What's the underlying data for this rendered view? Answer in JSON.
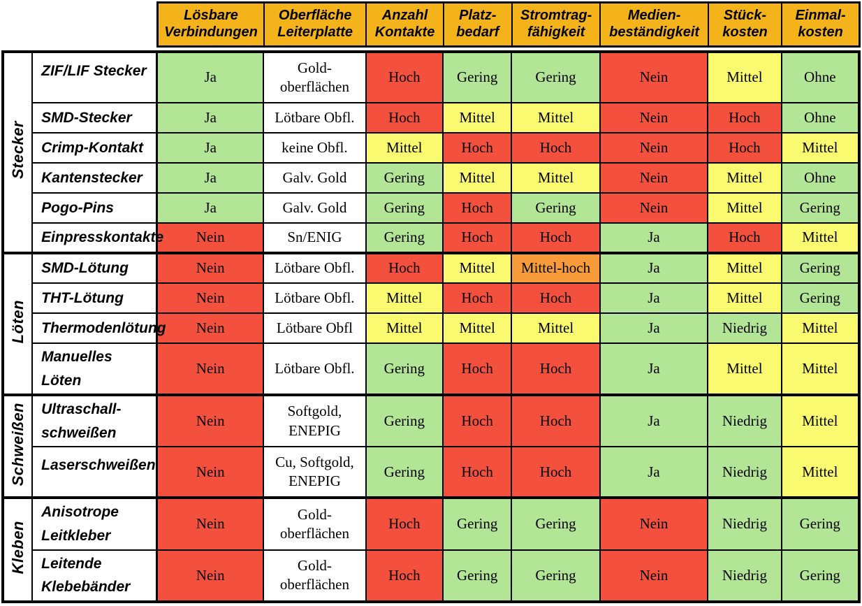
{
  "colors": {
    "green": "#B2E596",
    "yellow": "#FAFA70",
    "red": "#F3513D",
    "orange": "#F79B3B",
    "white": "#FFFFFF",
    "header_bg": "#F4B31A",
    "border": "#000000",
    "text": "#000000"
  },
  "chart_data": {
    "type": "table",
    "title": "Verbindungstechniken Vergleichsmatrix",
    "legend_position": "none",
    "grid": true,
    "columns": [
      "Lösbare\nVerbindungen",
      "Oberfläche\nLeiterplatte",
      "Anzahl\nKontakte",
      "Platz-\nbedarf",
      "Stromtrag-\nfähigkeit",
      "Medien-\nbeständigkeit",
      "Stück-\nkosten",
      "Einmal-\nkosten"
    ],
    "row_groups": [
      {
        "name": "Stecker",
        "rows": [
          {
            "label": "ZIF/LIF Stecker",
            "cells": [
              {
                "value": "Ja",
                "level": "green"
              },
              {
                "value": "Gold-\noberflächen",
                "level": "white"
              },
              {
                "value": "Hoch",
                "level": "red"
              },
              {
                "value": "Gering",
                "level": "green"
              },
              {
                "value": "Gering",
                "level": "green"
              },
              {
                "value": "Nein",
                "level": "red"
              },
              {
                "value": "Mittel",
                "level": "yellow"
              },
              {
                "value": "Ohne",
                "level": "green"
              }
            ]
          },
          {
            "label": "SMD-Stecker",
            "cells": [
              {
                "value": "Ja",
                "level": "green"
              },
              {
                "value": "Lötbare Obfl.",
                "level": "white"
              },
              {
                "value": "Hoch",
                "level": "red"
              },
              {
                "value": "Mittel",
                "level": "yellow"
              },
              {
                "value": "Mittel",
                "level": "yellow"
              },
              {
                "value": "Nein",
                "level": "red"
              },
              {
                "value": "Hoch",
                "level": "red"
              },
              {
                "value": "Ohne",
                "level": "green"
              }
            ]
          },
          {
            "label": "Crimp-Kontakt",
            "cells": [
              {
                "value": "Ja",
                "level": "green"
              },
              {
                "value": "keine Obfl.",
                "level": "white"
              },
              {
                "value": "Mittel",
                "level": "yellow"
              },
              {
                "value": "Hoch",
                "level": "red"
              },
              {
                "value": "Hoch",
                "level": "red"
              },
              {
                "value": "Nein",
                "level": "red"
              },
              {
                "value": "Hoch",
                "level": "red"
              },
              {
                "value": "Mittel",
                "level": "yellow"
              }
            ]
          },
          {
            "label": "Kantenstecker",
            "cells": [
              {
                "value": "Ja",
                "level": "green"
              },
              {
                "value": "Galv. Gold",
                "level": "white"
              },
              {
                "value": "Gering",
                "level": "green"
              },
              {
                "value": "Mittel",
                "level": "yellow"
              },
              {
                "value": "Mittel",
                "level": "yellow"
              },
              {
                "value": "Nein",
                "level": "red"
              },
              {
                "value": "Mittel",
                "level": "yellow"
              },
              {
                "value": "Ohne",
                "level": "green"
              }
            ]
          },
          {
            "label": "Pogo-Pins",
            "cells": [
              {
                "value": "Ja",
                "level": "green"
              },
              {
                "value": "Galv. Gold",
                "level": "white"
              },
              {
                "value": "Gering",
                "level": "green"
              },
              {
                "value": "Hoch",
                "level": "red"
              },
              {
                "value": "Gering",
                "level": "green"
              },
              {
                "value": "Nein",
                "level": "red"
              },
              {
                "value": "Mittel",
                "level": "yellow"
              },
              {
                "value": "Gering",
                "level": "green"
              }
            ]
          },
          {
            "label": "Einpresskontakte",
            "cells": [
              {
                "value": "Nein",
                "level": "red"
              },
              {
                "value": "Sn/ENIG",
                "level": "white"
              },
              {
                "value": "Gering",
                "level": "green"
              },
              {
                "value": "Hoch",
                "level": "red"
              },
              {
                "value": "Hoch",
                "level": "red"
              },
              {
                "value": "Ja",
                "level": "green"
              },
              {
                "value": "Hoch",
                "level": "red"
              },
              {
                "value": "Mittel",
                "level": "yellow"
              }
            ]
          }
        ]
      },
      {
        "name": "Löten",
        "rows": [
          {
            "label": "SMD-Lötung",
            "cells": [
              {
                "value": "Nein",
                "level": "red"
              },
              {
                "value": "Lötbare Obfl.",
                "level": "white"
              },
              {
                "value": "Hoch",
                "level": "red"
              },
              {
                "value": "Mittel",
                "level": "yellow"
              },
              {
                "value": "Mittel-hoch",
                "level": "orange"
              },
              {
                "value": "Ja",
                "level": "green"
              },
              {
                "value": "Mittel",
                "level": "yellow"
              },
              {
                "value": "Gering",
                "level": "green"
              }
            ]
          },
          {
            "label": "THT-Lötung",
            "cells": [
              {
                "value": "Nein",
                "level": "red"
              },
              {
                "value": "Lötbare Obfl.",
                "level": "white"
              },
              {
                "value": "Mittel",
                "level": "yellow"
              },
              {
                "value": "Hoch",
                "level": "red"
              },
              {
                "value": "Hoch",
                "level": "red"
              },
              {
                "value": "Ja",
                "level": "green"
              },
              {
                "value": "Mittel",
                "level": "yellow"
              },
              {
                "value": "Gering",
                "level": "green"
              }
            ]
          },
          {
            "label": "Thermodenlötung",
            "cells": [
              {
                "value": "Nein",
                "level": "red"
              },
              {
                "value": "Lötbare Obfl",
                "level": "white"
              },
              {
                "value": "Mittel",
                "level": "yellow"
              },
              {
                "value": "Mittel",
                "level": "yellow"
              },
              {
                "value": "Mittel",
                "level": "yellow"
              },
              {
                "value": "Ja",
                "level": "green"
              },
              {
                "value": "Niedrig",
                "level": "green"
              },
              {
                "value": "Mittel",
                "level": "yellow"
              }
            ]
          },
          {
            "label": "Manuelles Löten",
            "cells": [
              {
                "value": "Nein",
                "level": "red"
              },
              {
                "value": "Lötbare Obfl.",
                "level": "white"
              },
              {
                "value": "Gering",
                "level": "green"
              },
              {
                "value": "Hoch",
                "level": "red"
              },
              {
                "value": "Hoch",
                "level": "red"
              },
              {
                "value": "Ja",
                "level": "green"
              },
              {
                "value": "Mittel",
                "level": "yellow"
              },
              {
                "value": "Mittel",
                "level": "yellow"
              }
            ]
          }
        ]
      },
      {
        "name": "Schweißen",
        "rows": [
          {
            "label": "Ultraschall-\nschweißen",
            "cells": [
              {
                "value": "Nein",
                "level": "red"
              },
              {
                "value": "Softgold,\nENEPIG",
                "level": "white"
              },
              {
                "value": "Gering",
                "level": "green"
              },
              {
                "value": "Hoch",
                "level": "red"
              },
              {
                "value": "Hoch",
                "level": "red"
              },
              {
                "value": "Ja",
                "level": "green"
              },
              {
                "value": "Niedrig",
                "level": "green"
              },
              {
                "value": "Mittel",
                "level": "yellow"
              }
            ]
          },
          {
            "label": "Laserschweißen",
            "cells": [
              {
                "value": "Nein",
                "level": "red"
              },
              {
                "value": "Cu, Softgold,\nENEPIG",
                "level": "white"
              },
              {
                "value": "Gering",
                "level": "green"
              },
              {
                "value": "Hoch",
                "level": "red"
              },
              {
                "value": "Hoch",
                "level": "red"
              },
              {
                "value": "Ja",
                "level": "green"
              },
              {
                "value": "Niedrig",
                "level": "green"
              },
              {
                "value": "Mittel",
                "level": "yellow"
              }
            ]
          }
        ]
      },
      {
        "name": "Kleben",
        "rows": [
          {
            "label": "Anisotrope\nLeitkleber",
            "cells": [
              {
                "value": "Nein",
                "level": "red"
              },
              {
                "value": "Gold-\noberflächen",
                "level": "white"
              },
              {
                "value": "Hoch",
                "level": "red"
              },
              {
                "value": "Gering",
                "level": "green"
              },
              {
                "value": "Gering",
                "level": "green"
              },
              {
                "value": "Nein",
                "level": "red"
              },
              {
                "value": "Niedrig",
                "level": "green"
              },
              {
                "value": "Gering",
                "level": "green"
              }
            ]
          },
          {
            "label": "Leitende\nKlebebänder",
            "cells": [
              {
                "value": "Nein",
                "level": "red"
              },
              {
                "value": "Gold-\noberflächen",
                "level": "white"
              },
              {
                "value": "Hoch",
                "level": "red"
              },
              {
                "value": "Gering",
                "level": "green"
              },
              {
                "value": "Gering",
                "level": "green"
              },
              {
                "value": "Nein",
                "level": "red"
              },
              {
                "value": "Niedrig",
                "level": "green"
              },
              {
                "value": "Gering",
                "level": "green"
              }
            ]
          }
        ]
      }
    ]
  }
}
